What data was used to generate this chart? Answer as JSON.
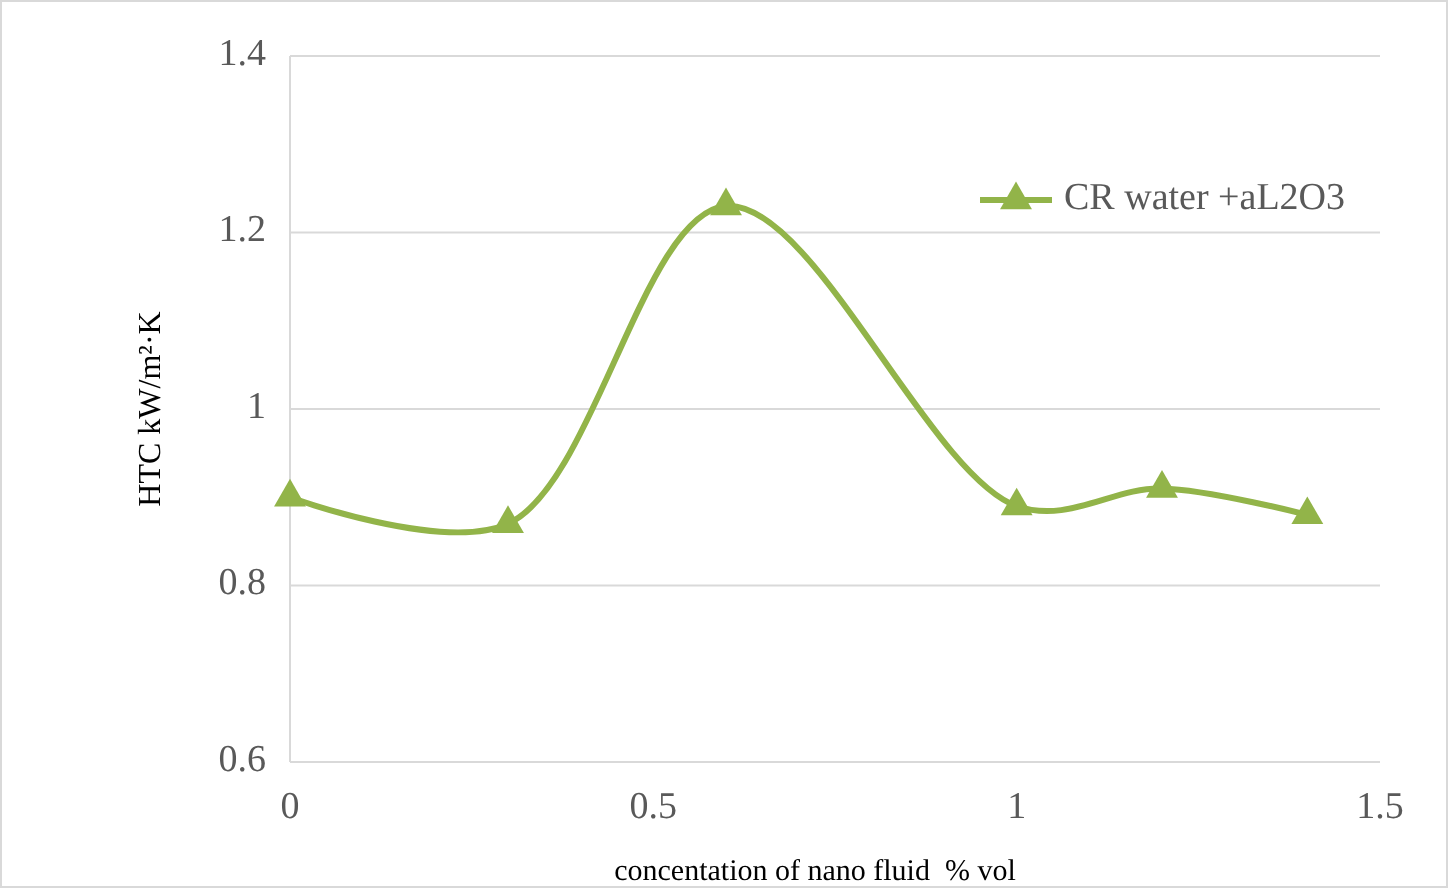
{
  "chart_data": {
    "type": "line",
    "xlabel": "concentation of nano fluid  % vol",
    "ylabel": "HTC kW/m²·K",
    "x": [
      0,
      0.3,
      0.6,
      1,
      1.2,
      1.4
    ],
    "series": [
      {
        "name": "CR water +aL2O3",
        "color": "#92b449",
        "values": [
          0.9,
          0.87,
          1.23,
          0.89,
          0.91,
          0.88
        ]
      }
    ],
    "xlim": [
      0,
      1.5
    ],
    "ylim": [
      0.6,
      1.4
    ],
    "xticks": [
      0,
      0.5,
      1,
      1.5
    ],
    "yticks": [
      0.6,
      0.8,
      1,
      1.2,
      1.4
    ],
    "grid": "y",
    "legend": "top right",
    "marker": "triangle",
    "line_style": "solid"
  }
}
